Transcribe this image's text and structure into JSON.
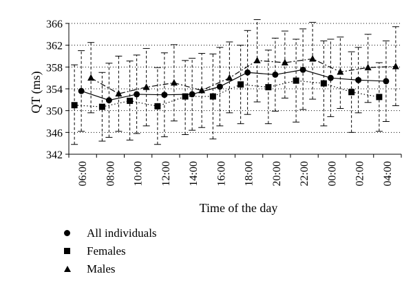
{
  "chart_data": {
    "type": "line",
    "title": "",
    "xlabel": "Time of the day",
    "ylabel": "QT (ms)",
    "ylim": [
      342,
      366
    ],
    "yticks": [
      "342",
      "346",
      "350",
      "354",
      "358",
      "362",
      "366"
    ],
    "categories": [
      "06:00",
      "08:00",
      "10:00",
      "12:00",
      "14:00",
      "16:00",
      "18:00",
      "20:00",
      "22:00",
      "00:00",
      "02:00",
      "04:00"
    ],
    "grid": "horizontal dotted",
    "legend_placement": "bottom-left",
    "series": [
      {
        "name": "All individuals",
        "marker": "circle",
        "line_style": "solid",
        "values": [
          353.6,
          351.9,
          353.0,
          352.9,
          353.0,
          354.4,
          357.0,
          356.6,
          357.5,
          356.0,
          355.6,
          355.4
        ],
        "error_low": [
          346.2,
          345.1,
          345.8,
          345.2,
          346.4,
          347.2,
          349.3,
          349.9,
          350.2,
          348.9,
          349.6,
          348.0
        ],
        "error_high": [
          361.0,
          358.7,
          360.2,
          360.6,
          359.6,
          361.6,
          364.7,
          363.3,
          365.0,
          363.1,
          361.6,
          362.8
        ]
      },
      {
        "name": "Females",
        "marker": "square",
        "line_style": "dotted",
        "values": [
          351.0,
          350.7,
          351.8,
          350.8,
          352.6,
          352.6,
          354.8,
          354.3,
          355.5,
          355.0,
          353.4,
          352.5
        ],
        "error_low": [
          343.8,
          344.4,
          344.6,
          343.8,
          345.6,
          344.8,
          347.6,
          347.6,
          347.9,
          347.2,
          346.0,
          346.2
        ],
        "error_high": [
          358.4,
          357.0,
          359.1,
          357.9,
          359.2,
          360.4,
          362.0,
          361.1,
          363.1,
          362.8,
          360.8,
          358.8
        ]
      },
      {
        "name": "Males",
        "marker": "triangle",
        "line_style": "dashdot",
        "values": [
          356.0,
          353.1,
          354.3,
          355.1,
          353.7,
          356.0,
          359.2,
          358.8,
          359.5,
          357.1,
          357.9,
          358.1
        ],
        "error_low": [
          349.6,
          346.2,
          347.2,
          348.1,
          346.9,
          349.6,
          351.6,
          352.3,
          352.1,
          350.4,
          351.5,
          350.9
        ],
        "error_high": [
          362.5,
          360.0,
          361.4,
          362.1,
          360.5,
          362.6,
          366.7,
          364.6,
          366.2,
          363.5,
          364.0,
          365.4
        ]
      }
    ]
  },
  "legend": {
    "items": [
      {
        "label": "All individuals",
        "marker": "circle"
      },
      {
        "label": "Females",
        "marker": "square"
      },
      {
        "label": "Males",
        "marker": "triangle"
      }
    ]
  }
}
